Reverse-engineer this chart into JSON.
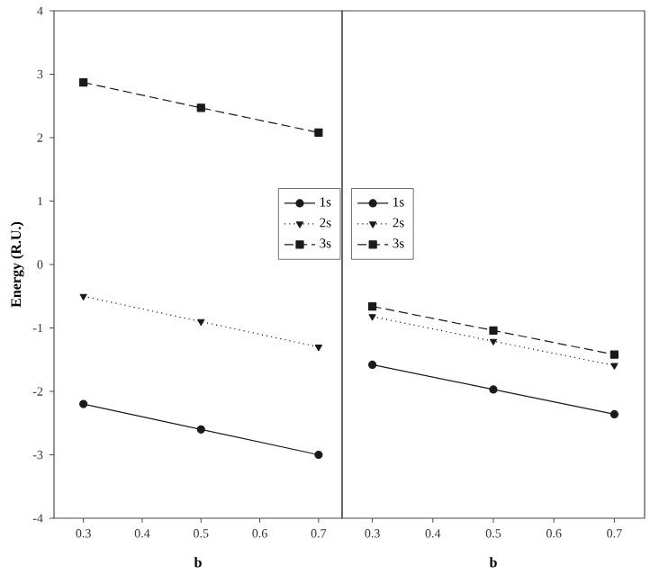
{
  "chart_data": [
    {
      "type": "line",
      "xlabel": "b",
      "ylabel": "Energy (R.U.)",
      "x": [
        0.3,
        0.5,
        0.7
      ],
      "xlim": [
        0.25,
        0.74
      ],
      "xticks": [
        0.3,
        0.4,
        0.5,
        0.6,
        0.7
      ],
      "ylim": [
        -4,
        4
      ],
      "yticks": [
        -4,
        -3,
        -2,
        -1,
        0,
        1,
        2,
        3,
        4
      ],
      "legend": "right",
      "series": [
        {
          "name": "1s",
          "color": "#1a1a1a",
          "marker": "circle",
          "line_style": "solid",
          "values": [
            -2.2,
            -2.6,
            -3.0
          ]
        },
        {
          "name": "2s",
          "color": "#1a1a1a",
          "marker": "triangle",
          "line_style": "dotted",
          "values": [
            -0.5,
            -0.9,
            -1.3
          ]
        },
        {
          "name": "3s",
          "color": "#1a1a1a",
          "marker": "square",
          "line_style": "dashed",
          "values": [
            2.87,
            2.47,
            2.08
          ]
        }
      ]
    },
    {
      "type": "line",
      "xlabel": "b",
      "x": [
        0.3,
        0.5,
        0.7
      ],
      "xlim": [
        0.25,
        0.75
      ],
      "xticks": [
        0.3,
        0.4,
        0.5,
        0.6,
        0.7
      ],
      "ylim": [
        -4,
        4
      ],
      "tick_labels": "x",
      "legend": "left",
      "series": [
        {
          "name": "1s",
          "color": "#1a1a1a",
          "marker": "circle",
          "line_style": "solid",
          "values": [
            -1.58,
            -1.97,
            -2.36
          ]
        },
        {
          "name": "2s",
          "color": "#1a1a1a",
          "marker": "triangle",
          "line_style": "dotted",
          "values": [
            -0.82,
            -1.21,
            -1.59
          ]
        },
        {
          "name": "3s",
          "color": "#1a1a1a",
          "marker": "square",
          "line_style": "dashed",
          "values": [
            -0.66,
            -1.04,
            -1.42
          ]
        }
      ]
    }
  ]
}
